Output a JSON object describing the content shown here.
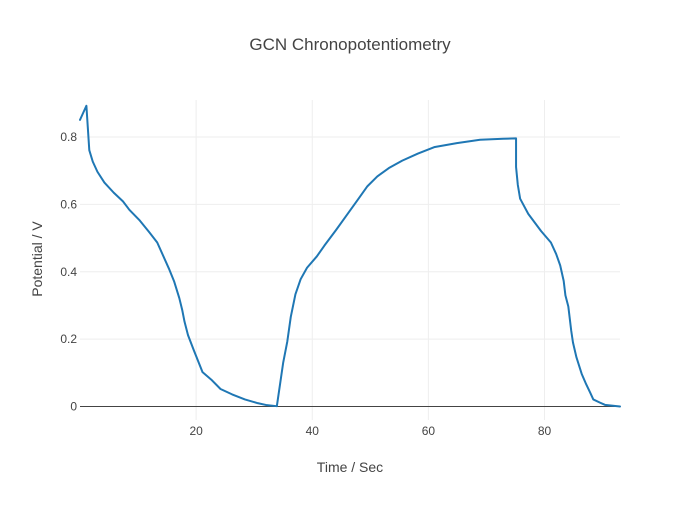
{
  "chart_data": {
    "type": "line",
    "title": "GCN Chronopotentiometry",
    "xlabel": "Time / Sec",
    "ylabel": "Potential / V",
    "xlim": [
      0,
      93
    ],
    "ylim": [
      -0.04,
      0.91
    ],
    "xticks": [
      20,
      40,
      60,
      80
    ],
    "yticks": [
      0,
      0.2,
      0.4,
      0.6,
      0.8
    ],
    "grid": true,
    "legend": "none",
    "colors": {
      "line": "#1f77b4",
      "grid": "#eeeeee",
      "zeroline": "#444444",
      "text": "#444444"
    },
    "series": [
      {
        "x": [
          0.0,
          1.1,
          1.6,
          2.2,
          3.0,
          4.2,
          5.8,
          7.4,
          8.5,
          10.2,
          11.9,
          13.3,
          15.3,
          16.2,
          17.1,
          17.6,
          18.0,
          18.6,
          19.6,
          21.1,
          22.6,
          24.2,
          26.2,
          28.4,
          30.6,
          32.2,
          33.9,
          35.0,
          35.7,
          36.3,
          37.1,
          38.0,
          39.1,
          40.8,
          42.1,
          44.1,
          46.1,
          47.8,
          49.5,
          51.2,
          53.2,
          55.5,
          58.2,
          61.0,
          64.9,
          68.9,
          72.9,
          75.1,
          75.1,
          75.4,
          75.8,
          77.2,
          79.4,
          81.1,
          82.0,
          82.7,
          83.3,
          83.6,
          84.1,
          84.6,
          84.9,
          85.5,
          86.4,
          87.1,
          87.9,
          88.4,
          89.5,
          90.4,
          93.0
        ],
        "y": [
          0.851,
          0.893,
          0.761,
          0.727,
          0.697,
          0.665,
          0.635,
          0.609,
          0.584,
          0.554,
          0.518,
          0.487,
          0.41,
          0.372,
          0.322,
          0.287,
          0.252,
          0.212,
          0.167,
          0.102,
          0.08,
          0.052,
          0.036,
          0.021,
          0.01,
          0.004,
          0.001,
          0.131,
          0.193,
          0.266,
          0.333,
          0.378,
          0.412,
          0.446,
          0.478,
          0.524,
          0.572,
          0.613,
          0.654,
          0.683,
          0.708,
          0.73,
          0.751,
          0.77,
          0.782,
          0.792,
          0.795,
          0.796,
          0.711,
          0.658,
          0.617,
          0.572,
          0.521,
          0.487,
          0.453,
          0.419,
          0.373,
          0.33,
          0.297,
          0.225,
          0.19,
          0.146,
          0.097,
          0.069,
          0.04,
          0.021,
          0.012,
          0.005,
          0.0
        ]
      }
    ]
  }
}
